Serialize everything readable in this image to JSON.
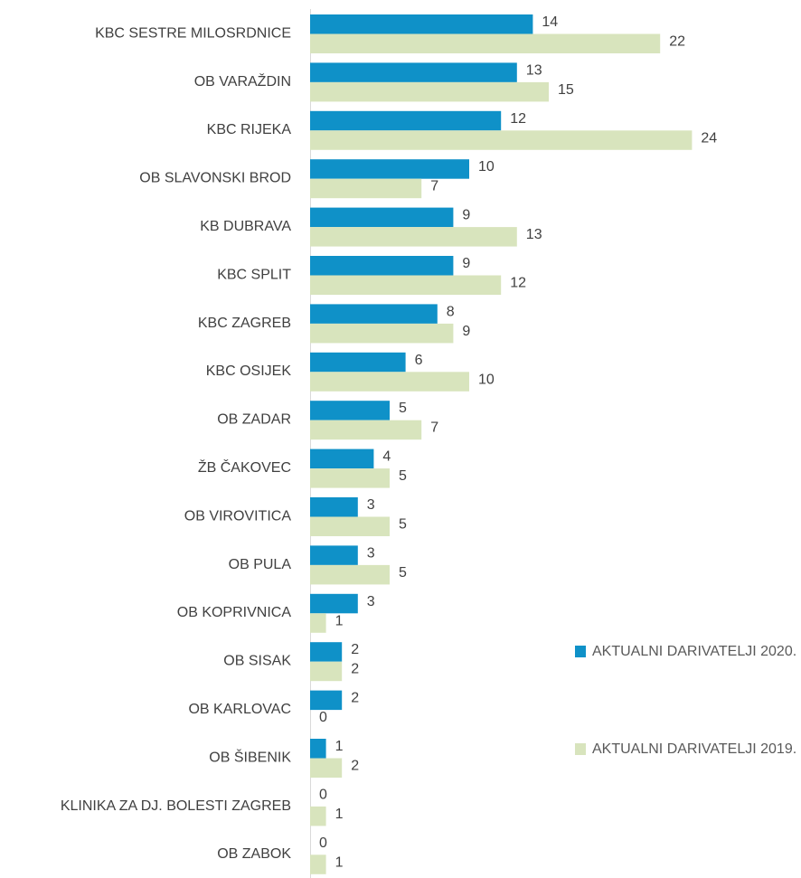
{
  "chart_data": {
    "type": "bar",
    "orientation": "horizontal",
    "categories": [
      "KBC SESTRE MILOSRDNICE",
      "OB VARAŽDIN",
      "KBC RIJEKA",
      "OB SLAVONSKI BROD",
      "KB DUBRAVA",
      "KBC SPLIT",
      "KBC ZAGREB",
      "KBC OSIJEK",
      "OB ZADAR",
      "ŽB ČAKOVEC",
      "OB VIROVITICA",
      "OB PULA",
      "OB KOPRIVNICA",
      "OB SISAK",
      "OB KARLOVAC",
      "OB ŠIBENIK",
      "KLINIKA ZA DJ. BOLESTI ZAGREB",
      "OB ZABOK"
    ],
    "series": [
      {
        "name": "AKTUALNI DARIVATELJI 2020.",
        "color": "#0f91c8",
        "values": [
          14,
          13,
          12,
          10,
          9,
          9,
          8,
          6,
          5,
          4,
          3,
          3,
          3,
          2,
          2,
          1,
          0,
          0
        ]
      },
      {
        "name": "AKTUALNI DARIVATELJI 2019.",
        "color": "#d8e4bd",
        "values": [
          22,
          15,
          24,
          7,
          13,
          12,
          9,
          10,
          7,
          5,
          5,
          5,
          1,
          2,
          0,
          2,
          1,
          1
        ]
      }
    ],
    "xlim": [
      0,
      30
    ],
    "legend": "right"
  }
}
